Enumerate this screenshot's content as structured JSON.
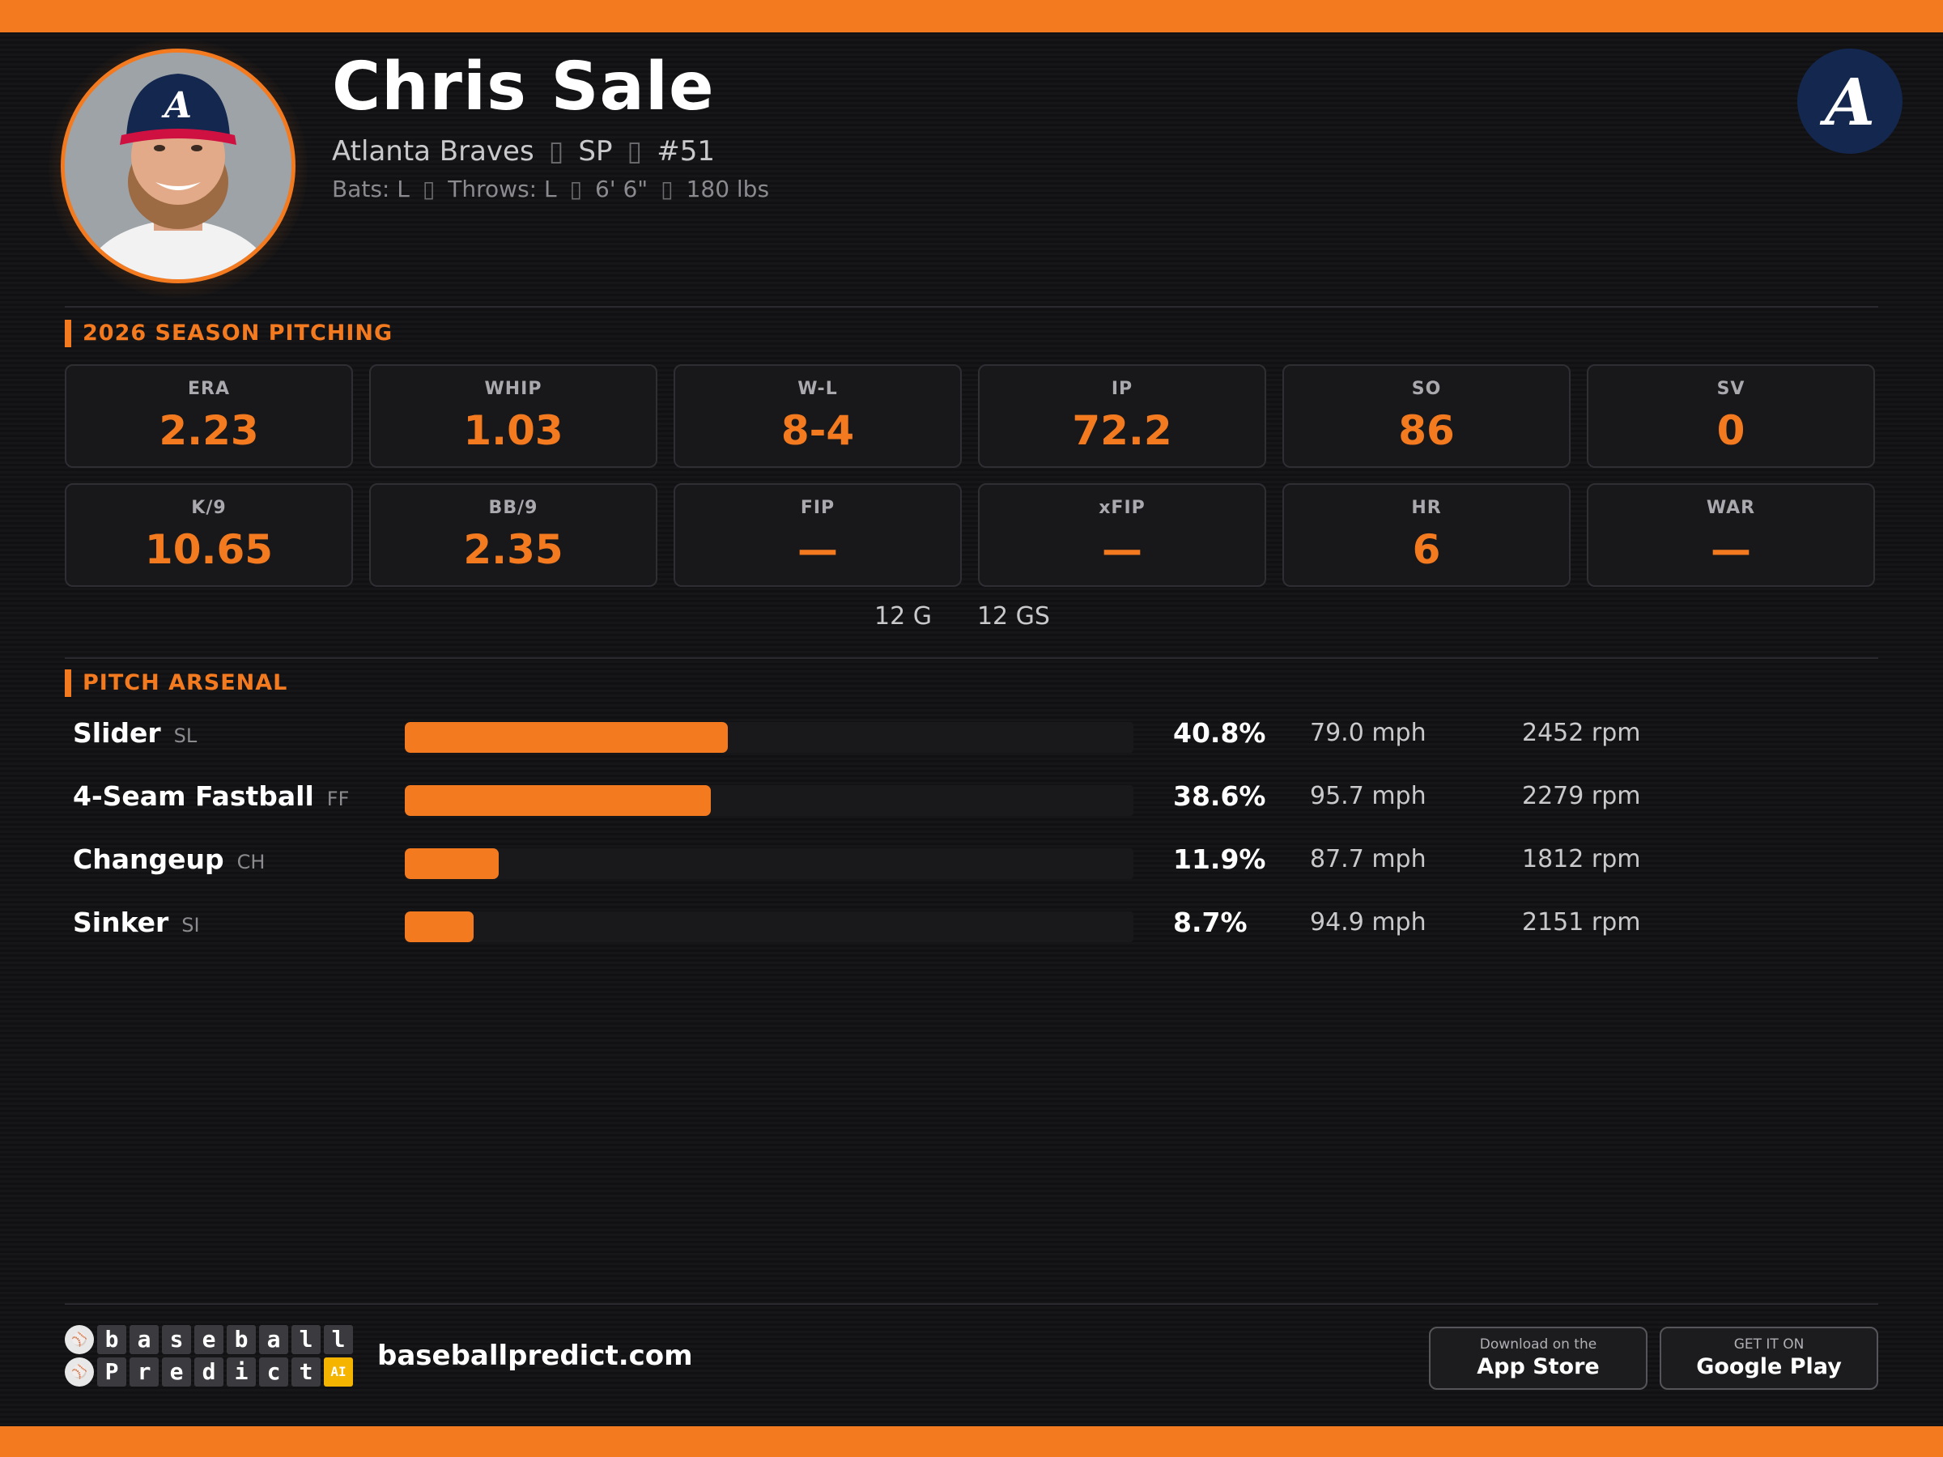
{
  "player": {
    "name": "Chris Sale",
    "team": "Atlanta Braves",
    "position": "SP",
    "number": "#51",
    "bats": "Bats: L",
    "throws": "Throws: L",
    "height": "6' 6\"",
    "weight": "180 lbs",
    "separator": "▯"
  },
  "team_logo_letter": "A",
  "season": {
    "title": "2026 SEASON PITCHING",
    "stats": [
      {
        "label": "ERA",
        "value": "2.23"
      },
      {
        "label": "WHIP",
        "value": "1.03"
      },
      {
        "label": "W-L",
        "value": "8-4"
      },
      {
        "label": "IP",
        "value": "72.2"
      },
      {
        "label": "SO",
        "value": "86"
      },
      {
        "label": "SV",
        "value": "0"
      },
      {
        "label": "K/9",
        "value": "10.65"
      },
      {
        "label": "BB/9",
        "value": "2.35"
      },
      {
        "label": "FIP",
        "value": "—"
      },
      {
        "label": "xFIP",
        "value": "—"
      },
      {
        "label": "HR",
        "value": "6"
      },
      {
        "label": "WAR",
        "value": "—"
      }
    ],
    "games": "12 G",
    "games_started": "12 GS"
  },
  "arsenal": {
    "title": "PITCH ARSENAL",
    "pitches": [
      {
        "name": "Slider",
        "code": "SL",
        "usage": "40.8%",
        "usage_value": 40.8,
        "velo": "79.0 mph",
        "spin": "2452 rpm"
      },
      {
        "name": "4-Seam Fastball",
        "code": "FF",
        "usage": "38.6%",
        "usage_value": 38.6,
        "velo": "95.7 mph",
        "spin": "2279 rpm"
      },
      {
        "name": "Changeup",
        "code": "CH",
        "usage": "11.9%",
        "usage_value": 11.9,
        "velo": "87.7 mph",
        "spin": "1812 rpm"
      },
      {
        "name": "Sinker",
        "code": "SI",
        "usage": "8.7%",
        "usage_value": 8.7,
        "velo": "94.9 mph",
        "spin": "2151 rpm"
      }
    ]
  },
  "footer": {
    "logo_row1": [
      "b",
      "a",
      "s",
      "e",
      "b",
      "a",
      "l",
      "l"
    ],
    "logo_row2": [
      "P",
      "r",
      "e",
      "d",
      "i",
      "c",
      "t"
    ],
    "logo_ai": "AI",
    "site": "baseballpredict.com",
    "app_store_small": "Download on the",
    "app_store_big": "App Store",
    "google_small": "GET IT ON",
    "google_big": "Google Play"
  },
  "colors": {
    "accent": "#f47a20",
    "background": "#111113",
    "braves_navy": "#13274f",
    "braves_red": "#ce1141"
  }
}
